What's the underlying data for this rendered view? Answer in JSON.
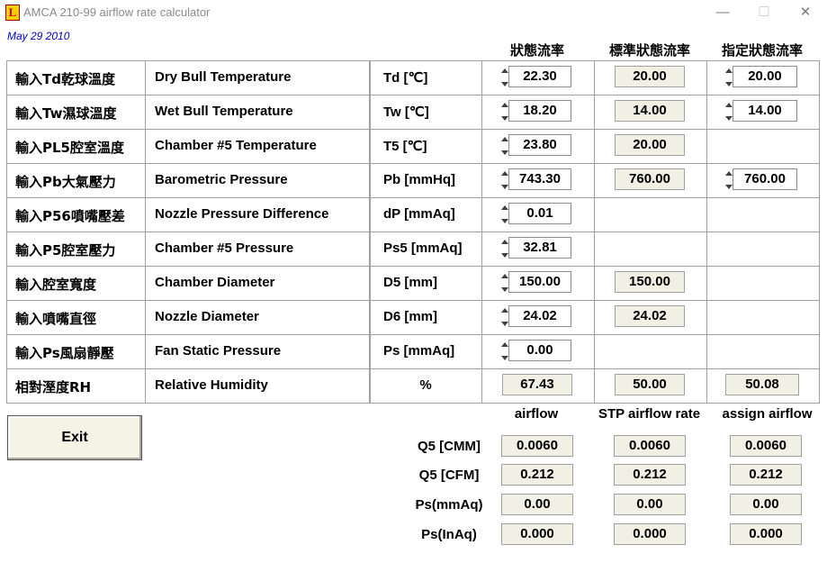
{
  "window": {
    "title": "AMCA 210-99 airflow rate calculator",
    "icon_letter": "L"
  },
  "date": "May 29 2010",
  "columns": {
    "actual": "狀態流率",
    "standard": "標準狀態流率",
    "assigned": "指定狀態流率"
  },
  "rows": [
    {
      "zh": "輸入Td乾球溫度",
      "en": "Dry Bull Temperature",
      "unit": "Td [℃]",
      "actual": "22.30",
      "standard": "20.00",
      "assigned": "20.00"
    },
    {
      "zh": "輸入Tw濕球溫度",
      "en": "Wet Bull Temperature",
      "unit": "Tw [℃]",
      "actual": "18.20",
      "standard": "14.00",
      "assigned": "14.00"
    },
    {
      "zh": "輸入PL5腔室溫度",
      "en": "Chamber #5 Temperature",
      "unit": "T5 [℃]",
      "actual": "23.80",
      "standard": "20.00"
    },
    {
      "zh": "輸入Pb大氣壓力",
      "en": "Barometric Pressure",
      "unit": "Pb [mmHq]",
      "actual": "743.30",
      "standard": "760.00",
      "assigned": "760.00"
    },
    {
      "zh": "輸入P56噴嘴壓差",
      "en": "Nozzle Pressure Difference",
      "unit": "dP [mmAq]",
      "actual": "0.01"
    },
    {
      "zh": "輸入P5腔室壓力",
      "en": "Chamber #5 Pressure",
      "unit": "Ps5 [mmAq]",
      "actual": "32.81"
    },
    {
      "zh": "輸入腔室寬度",
      "en": "Chamber Diameter",
      "unit": "D5 [mm]",
      "actual": "150.00",
      "standard": "150.00"
    },
    {
      "zh": "輸入噴嘴直徑",
      "en": "Nozzle Diameter",
      "unit": "D6 [mm]",
      "actual": "24.02",
      "standard": "24.02"
    },
    {
      "zh": "輸入Ps風扇靜壓",
      "en": "Fan Static Pressure",
      "unit": "Ps [mmAq]",
      "actual": "0.00"
    },
    {
      "zh": "相對溼度RH",
      "en": "Relative Humidity",
      "unit": "%",
      "actual": "67.43",
      "standard": "50.00",
      "assigned": "50.08"
    }
  ],
  "exit_label": "Exit",
  "output": {
    "headers": [
      "airflow",
      "STP airflow rate",
      "assign airflow"
    ],
    "rows": [
      {
        "label": "Q5 [CMM]",
        "values": [
          "0.0060",
          "0.0060",
          "0.0060"
        ]
      },
      {
        "label": "Q5 [CFM]",
        "values": [
          "0.212",
          "0.212",
          "0.212"
        ]
      },
      {
        "label": "Ps(mmAq)",
        "values": [
          "0.00",
          "0.00",
          "0.00"
        ]
      },
      {
        "label": "Ps(InAq)",
        "values": [
          "0.000",
          "0.000",
          "0.000"
        ]
      }
    ]
  }
}
